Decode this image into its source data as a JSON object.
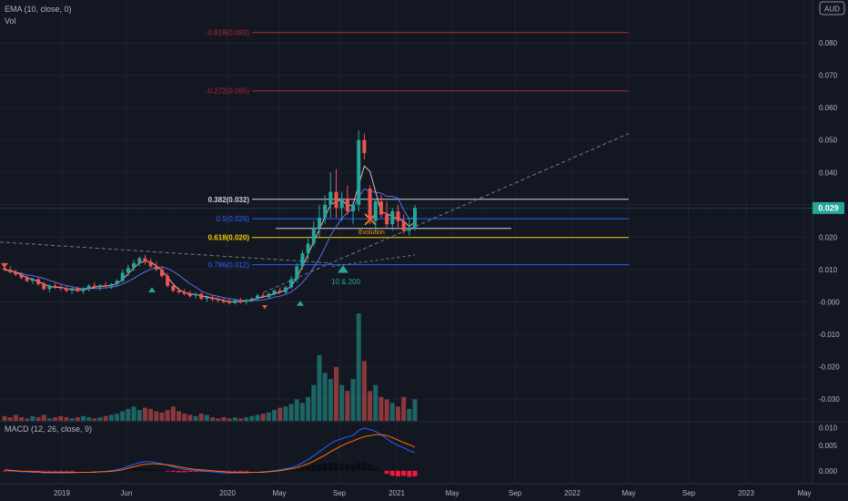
{
  "colors": {
    "background": "#131722",
    "text": "#b2b5be",
    "grid": "#1e222d",
    "separator": "#2a2e39",
    "up": "#26a69a",
    "down": "#ef5350",
    "price_tag": "#26a69a",
    "fib_ext": "#b22833",
    "fib_white": "#d1d4dc",
    "fib_blue": "#2962ff",
    "fib_yellow": "#f2cf02",
    "ema": "#e8b3b5",
    "sma": "#5b6ee8",
    "macd_line": "#2962ff",
    "signal_line": "#ff6d00",
    "hist_up": "#26a69a",
    "hist_down": "#ff1744",
    "annotation": "#ff9800",
    "marker": "#26a69a"
  },
  "header": {
    "ema_label": "EMA (10, close, 0)",
    "vol_label": "Vol",
    "macd_label": "MACD (12, 26, close, 9)",
    "currency_badge": "AUD",
    "price_tag": "0.029"
  },
  "chart_data": {
    "type": "candlestick",
    "title": "",
    "time_axis": {
      "ticks": [
        "2019",
        "Jun",
        "2020",
        "May",
        "Sep",
        "2021",
        "May",
        "Sep",
        "2022",
        "May",
        "Sep",
        "2023",
        "May"
      ],
      "range": [
        "2018-10",
        "2023-07"
      ]
    },
    "price_axis": {
      "ticks": [
        "0.080",
        "0.070",
        "0.060",
        "0.050",
        "0.040",
        "0.030",
        "0.020",
        "0.010",
        "-0.000",
        "-0.010",
        "-0.020",
        "-0.030"
      ],
      "range": [
        -0.037,
        0.091
      ],
      "last_price": 0.029
    },
    "candles": [
      {
        "t": 0,
        "o": 0.0105,
        "h": 0.0118,
        "l": 0.0095,
        "c": 0.01
      },
      {
        "t": 1,
        "o": 0.01,
        "h": 0.011,
        "l": 0.0088,
        "c": 0.0092
      },
      {
        "t": 2,
        "o": 0.0092,
        "h": 0.01,
        "l": 0.008,
        "c": 0.0085
      },
      {
        "t": 3,
        "o": 0.0085,
        "h": 0.0092,
        "l": 0.007,
        "c": 0.0075
      },
      {
        "t": 4,
        "o": 0.0075,
        "h": 0.0082,
        "l": 0.006,
        "c": 0.0065
      },
      {
        "t": 5,
        "o": 0.0065,
        "h": 0.0075,
        "l": 0.0055,
        "c": 0.007
      },
      {
        "t": 6,
        "o": 0.007,
        "h": 0.0075,
        "l": 0.005,
        "c": 0.0055
      },
      {
        "t": 7,
        "o": 0.0055,
        "h": 0.0062,
        "l": 0.0035,
        "c": 0.004
      },
      {
        "t": 8,
        "o": 0.004,
        "h": 0.0055,
        "l": 0.003,
        "c": 0.005
      },
      {
        "t": 9,
        "o": 0.005,
        "h": 0.0058,
        "l": 0.004,
        "c": 0.0045
      },
      {
        "t": 10,
        "o": 0.0045,
        "h": 0.0052,
        "l": 0.0035,
        "c": 0.0042
      },
      {
        "t": 11,
        "o": 0.0042,
        "h": 0.005,
        "l": 0.003,
        "c": 0.0035
      },
      {
        "t": 12,
        "o": 0.0035,
        "h": 0.0045,
        "l": 0.0025,
        "c": 0.0042
      },
      {
        "t": 13,
        "o": 0.0042,
        "h": 0.0048,
        "l": 0.003,
        "c": 0.0033
      },
      {
        "t": 14,
        "o": 0.0033,
        "h": 0.0045,
        "l": 0.0025,
        "c": 0.004
      },
      {
        "t": 15,
        "o": 0.004,
        "h": 0.0055,
        "l": 0.0032,
        "c": 0.005
      },
      {
        "t": 16,
        "o": 0.005,
        "h": 0.006,
        "l": 0.004,
        "c": 0.0045
      },
      {
        "t": 17,
        "o": 0.0045,
        "h": 0.0055,
        "l": 0.0035,
        "c": 0.0052
      },
      {
        "t": 18,
        "o": 0.0052,
        "h": 0.0062,
        "l": 0.0042,
        "c": 0.0048
      },
      {
        "t": 19,
        "o": 0.0048,
        "h": 0.0058,
        "l": 0.004,
        "c": 0.0055
      },
      {
        "t": 20,
        "o": 0.0055,
        "h": 0.007,
        "l": 0.0048,
        "c": 0.0065
      },
      {
        "t": 21,
        "o": 0.0065,
        "h": 0.01,
        "l": 0.006,
        "c": 0.009
      },
      {
        "t": 22,
        "o": 0.009,
        "h": 0.0115,
        "l": 0.008,
        "c": 0.0105
      },
      {
        "t": 23,
        "o": 0.0105,
        "h": 0.013,
        "l": 0.0095,
        "c": 0.012
      },
      {
        "t": 24,
        "o": 0.012,
        "h": 0.014,
        "l": 0.011,
        "c": 0.0135
      },
      {
        "t": 25,
        "o": 0.0135,
        "h": 0.0145,
        "l": 0.0115,
        "c": 0.0125
      },
      {
        "t": 26,
        "o": 0.0125,
        "h": 0.0135,
        "l": 0.0105,
        "c": 0.011
      },
      {
        "t": 27,
        "o": 0.011,
        "h": 0.0125,
        "l": 0.0095,
        "c": 0.01
      },
      {
        "t": 28,
        "o": 0.01,
        "h": 0.011,
        "l": 0.0075,
        "c": 0.008
      },
      {
        "t": 29,
        "o": 0.008,
        "h": 0.009,
        "l": 0.0045,
        "c": 0.005
      },
      {
        "t": 30,
        "o": 0.005,
        "h": 0.0058,
        "l": 0.003,
        "c": 0.0035
      },
      {
        "t": 31,
        "o": 0.0035,
        "h": 0.0045,
        "l": 0.0025,
        "c": 0.003
      },
      {
        "t": 32,
        "o": 0.003,
        "h": 0.004,
        "l": 0.002,
        "c": 0.0025
      },
      {
        "t": 33,
        "o": 0.0025,
        "h": 0.0035,
        "l": 0.0015,
        "c": 0.002
      },
      {
        "t": 34,
        "o": 0.002,
        "h": 0.003,
        "l": 0.001,
        "c": 0.0025
      },
      {
        "t": 35,
        "o": 0.0025,
        "h": 0.003,
        "l": 0.0005,
        "c": 0.001
      },
      {
        "t": 36,
        "o": 0.001,
        "h": 0.002,
        "l": 0.0,
        "c": 0.0015
      },
      {
        "t": 37,
        "o": 0.0015,
        "h": 0.0022,
        "l": 0.0002,
        "c": 0.0008
      },
      {
        "t": 38,
        "o": 0.0008,
        "h": 0.0015,
        "l": -0.0002,
        "c": 0.0005
      },
      {
        "t": 39,
        "o": 0.0005,
        "h": 0.0012,
        "l": -0.0005,
        "c": 0.0
      },
      {
        "t": 40,
        "o": 0.0,
        "h": 0.001,
        "l": -0.0008,
        "c": -0.0003
      },
      {
        "t": 41,
        "o": -0.0003,
        "h": 0.0008,
        "l": -0.0008,
        "c": 0.0005
      },
      {
        "t": 42,
        "o": 0.0005,
        "h": 0.0012,
        "l": -0.0005,
        "c": 0.0
      },
      {
        "t": 43,
        "o": 0.0,
        "h": 0.001,
        "l": -0.0008,
        "c": 0.0006
      },
      {
        "t": 44,
        "o": 0.0006,
        "h": 0.0015,
        "l": 0.0,
        "c": 0.001
      },
      {
        "t": 45,
        "o": 0.001,
        "h": 0.0025,
        "l": 0.0005,
        "c": 0.002
      },
      {
        "t": 46,
        "o": 0.002,
        "h": 0.003,
        "l": 0.0012,
        "c": 0.0015
      },
      {
        "t": 47,
        "o": 0.0015,
        "h": 0.003,
        "l": 0.001,
        "c": 0.0025
      },
      {
        "t": 48,
        "o": 0.0025,
        "h": 0.004,
        "l": 0.002,
        "c": 0.0035
      },
      {
        "t": 49,
        "o": 0.0035,
        "h": 0.0045,
        "l": 0.0025,
        "c": 0.003
      },
      {
        "t": 50,
        "o": 0.003,
        "h": 0.005,
        "l": 0.0025,
        "c": 0.0045
      },
      {
        "t": 51,
        "o": 0.0045,
        "h": 0.008,
        "l": 0.004,
        "c": 0.007
      },
      {
        "t": 52,
        "o": 0.007,
        "h": 0.012,
        "l": 0.006,
        "c": 0.011
      },
      {
        "t": 53,
        "o": 0.011,
        "h": 0.016,
        "l": 0.01,
        "c": 0.015
      },
      {
        "t": 54,
        "o": 0.015,
        "h": 0.02,
        "l": 0.013,
        "c": 0.018
      },
      {
        "t": 55,
        "o": 0.018,
        "h": 0.025,
        "l": 0.017,
        "c": 0.023
      },
      {
        "t": 56,
        "o": 0.023,
        "h": 0.03,
        "l": 0.02,
        "c": 0.026
      },
      {
        "t": 57,
        "o": 0.026,
        "h": 0.033,
        "l": 0.024,
        "c": 0.03
      },
      {
        "t": 58,
        "o": 0.03,
        "h": 0.04,
        "l": 0.026,
        "c": 0.034
      },
      {
        "t": 59,
        "o": 0.034,
        "h": 0.041,
        "l": 0.026,
        "c": 0.029
      },
      {
        "t": 60,
        "o": 0.029,
        "h": 0.034,
        "l": 0.025,
        "c": 0.032
      },
      {
        "t": 61,
        "o": 0.032,
        "h": 0.036,
        "l": 0.027,
        "c": 0.028
      },
      {
        "t": 62,
        "o": 0.028,
        "h": 0.031,
        "l": 0.024,
        "c": 0.03
      },
      {
        "t": 63,
        "o": 0.03,
        "h": 0.053,
        "l": 0.028,
        "c": 0.05
      },
      {
        "t": 64,
        "o": 0.05,
        "h": 0.052,
        "l": 0.044,
        "c": 0.046
      },
      {
        "t": 65,
        "o": 0.035,
        "h": 0.036,
        "l": 0.024,
        "c": 0.025
      },
      {
        "t": 66,
        "o": 0.025,
        "h": 0.032,
        "l": 0.022,
        "c": 0.031
      },
      {
        "t": 67,
        "o": 0.031,
        "h": 0.033,
        "l": 0.026,
        "c": 0.027
      },
      {
        "t": 68,
        "o": 0.027,
        "h": 0.031,
        "l": 0.023,
        "c": 0.024
      },
      {
        "t": 69,
        "o": 0.024,
        "h": 0.029,
        "l": 0.022,
        "c": 0.028
      },
      {
        "t": 70,
        "o": 0.028,
        "h": 0.03,
        "l": 0.023,
        "c": 0.025
      },
      {
        "t": 71,
        "o": 0.025,
        "h": 0.027,
        "l": 0.021,
        "c": 0.022
      },
      {
        "t": 72,
        "o": 0.022,
        "h": 0.026,
        "l": 0.0205,
        "c": 0.023
      },
      {
        "t": 73,
        "o": 0.023,
        "h": 0.03,
        "l": 0.022,
        "c": 0.029
      }
    ],
    "volume": [
      4,
      3,
      5,
      3,
      2,
      4,
      3,
      5,
      2,
      3,
      4,
      3,
      2,
      3,
      4,
      3,
      2,
      3,
      4,
      5,
      6,
      8,
      10,
      12,
      9,
      11,
      10,
      8,
      7,
      9,
      12,
      8,
      6,
      5,
      4,
      6,
      5,
      3,
      2,
      3,
      2,
      3,
      2,
      3,
      4,
      5,
      6,
      7,
      9,
      11,
      12,
      14,
      18,
      15,
      20,
      30,
      55,
      40,
      35,
      45,
      30,
      25,
      35,
      90,
      50,
      25,
      30,
      20,
      18,
      15,
      12,
      20,
      10,
      18
    ],
    "volume_axis": [
      "0.010"
    ],
    "fibonacci": [
      {
        "label": "-0.618(0.083)",
        "price": 0.0832
      },
      {
        "label": "-0.272(0.065)",
        "price": 0.0652
      },
      {
        "label": "0.382(0.032)",
        "price": 0.0317
      },
      {
        "label": "0.5(0.026)",
        "price": 0.0257
      },
      {
        "label": "0.618(0.020)",
        "price": 0.0199
      },
      {
        "label": "0.786(0.012)",
        "price": 0.0115
      }
    ],
    "annotations": [
      "Evolution",
      "10 & 200"
    ],
    "macd": {
      "axis_ticks": [
        "0.005",
        "0.000"
      ],
      "range": [
        -0.0022,
        0.0092
      ],
      "macd_line": [
        0.0001,
        0.0,
        -0.0001,
        -0.0002,
        -0.0002,
        -0.0003,
        -0.0003,
        -0.0004,
        -0.0004,
        -0.0004,
        -0.0004,
        -0.0004,
        -0.0004,
        -0.0003,
        -0.0003,
        -0.0003,
        -0.0002,
        -0.0002,
        -0.0001,
        0.0,
        0.0002,
        0.0005,
        0.0009,
        0.0013,
        0.0016,
        0.0018,
        0.0018,
        0.0016,
        0.0014,
        0.0011,
        0.0008,
        0.0005,
        0.0003,
        0.0002,
        0.0001,
        0.0,
        -0.0001,
        -0.0002,
        -0.0003,
        -0.0004,
        -0.0004,
        -0.0004,
        -0.0004,
        -0.0004,
        -0.0003,
        -0.0003,
        -0.0002,
        -0.0001,
        0.0,
        0.0002,
        0.0004,
        0.0006,
        0.001,
        0.0016,
        0.0022,
        0.003,
        0.0038,
        0.0046,
        0.0054,
        0.006,
        0.0064,
        0.0068,
        0.007,
        0.008,
        0.0085,
        0.0082,
        0.0078,
        0.0072,
        0.0064,
        0.0056,
        0.005,
        0.0046,
        0.004,
        0.0036
      ],
      "signal_line": [
        0.0002,
        0.0001,
        0.0,
        -0.0001,
        -0.0001,
        -0.0002,
        -0.0002,
        -0.0003,
        -0.0003,
        -0.0003,
        -0.0003,
        -0.0003,
        -0.0003,
        -0.0003,
        -0.0003,
        -0.0003,
        -0.0003,
        -0.0002,
        -0.0002,
        -0.0001,
        0.0,
        0.0002,
        0.0005,
        0.0008,
        0.0011,
        0.0013,
        0.0014,
        0.0014,
        0.0013,
        0.0012,
        0.001,
        0.0008,
        0.0006,
        0.0004,
        0.0003,
        0.0002,
        0.0001,
        0.0,
        -0.0001,
        -0.0002,
        -0.0003,
        -0.0003,
        -0.0003,
        -0.0003,
        -0.0003,
        -0.0003,
        -0.0003,
        -0.0002,
        -0.0001,
        0.0,
        0.0002,
        0.0004,
        0.0006,
        0.001,
        0.0014,
        0.0019,
        0.0025,
        0.0031,
        0.0038,
        0.0044,
        0.005,
        0.0055,
        0.0059,
        0.0064,
        0.0068,
        0.007,
        0.0072,
        0.0072,
        0.007,
        0.0066,
        0.0061,
        0.0056,
        0.0052,
        0.0047
      ],
      "histogram": [
        -0.0001,
        -0.0001,
        -0.0001,
        -0.0001,
        -0.0001,
        -0.0001,
        -0.0001,
        -0.0001,
        -0.0001,
        -0.0001,
        -0.0001,
        -0.0001,
        -0.0001,
        0.0,
        0.0,
        0.0,
        0.0001,
        0.0,
        0.0001,
        0.0001,
        0.0002,
        0.0003,
        0.0004,
        0.0005,
        0.0005,
        0.0005,
        0.0004,
        0.0002,
        0.0001,
        -0.0001,
        -0.0002,
        -0.0003,
        -0.0003,
        -0.0002,
        -0.0002,
        -0.0002,
        -0.0002,
        -0.0002,
        -0.0002,
        -0.0002,
        -0.0001,
        -0.0001,
        -0.0001,
        -0.0001,
        0.0,
        0.0,
        0.0001,
        0.0001,
        0.0001,
        0.0002,
        0.0002,
        0.0002,
        0.0004,
        0.0006,
        0.0008,
        0.0011,
        0.0013,
        0.0015,
        0.0016,
        0.0016,
        0.0014,
        0.0013,
        0.0011,
        0.0016,
        0.0017,
        0.0012,
        0.0006,
        0.0,
        -0.0006,
        -0.001,
        -0.0011,
        -0.001,
        -0.0012,
        -0.0011
      ]
    }
  }
}
